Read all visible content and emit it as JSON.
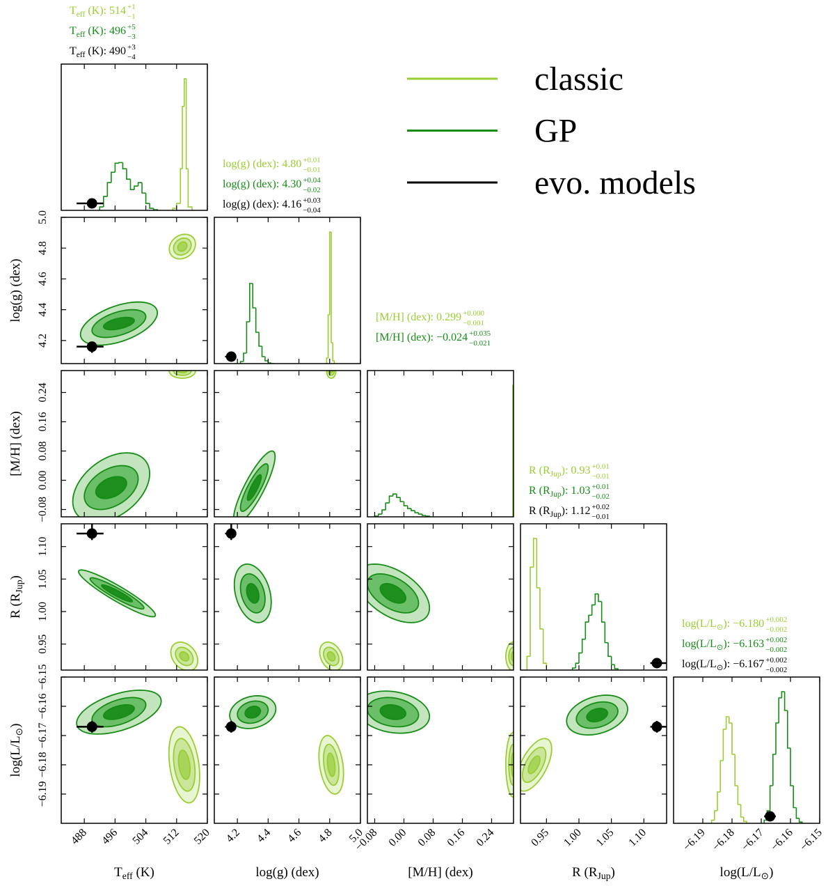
{
  "chart_data": {
    "type": "corner",
    "separator": ": ",
    "models": [
      {
        "name": "classic",
        "color": "#9acd32",
        "fills": [
          "#a6d55a",
          "#c9e69a",
          "#e8f5d3"
        ]
      },
      {
        "name": "GP",
        "color": "#168c16",
        "fills": [
          "#1c8f1c",
          "#6cbf69",
          "#c3e5bd"
        ]
      },
      {
        "name": "evo. models",
        "color": "#000000"
      }
    ],
    "params": [
      {
        "label": [
          "T",
          "eff",
          " (K)"
        ],
        "lim": [
          482,
          520
        ],
        "ticks": [
          488,
          496,
          504,
          512,
          520
        ],
        "estimates": [
          {
            "model": 0,
            "value": 514,
            "plus": 1,
            "minus": -1,
            "value_labels": [
              "514",
              "+1",
              "−1"
            ]
          },
          {
            "model": 1,
            "value": 496,
            "plus": 5,
            "minus": -3,
            "value_labels": [
              "496",
              "+5",
              "−3"
            ]
          },
          {
            "model": 2,
            "value": 490,
            "plus": 3,
            "minus": -4,
            "value_labels": [
              "490",
              "+3",
              "−4"
            ]
          }
        ],
        "hist": [
          {
            "model": 0,
            "bins": [
              511,
              512,
              513,
              513.5,
              514,
              514.5,
              515,
              516
            ],
            "counts": [
              3,
              10,
              60,
              150,
              190,
              60,
              5
            ]
          },
          {
            "model": 1,
            "bins": [
              492,
              493,
              494,
              495,
              496,
              497,
              498,
              499,
              500,
              501,
              502,
              503,
              504,
              505,
              506,
              507
            ],
            "counts": [
              5,
              20,
              40,
              55,
              68,
              69,
              60,
              45,
              30,
              35,
              40,
              25,
              10,
              3,
              1
            ]
          }
        ]
      },
      {
        "label": [
          "log(g) (dex)"
        ],
        "lim": [
          4.05,
          5.0
        ],
        "ticks": [
          4.2,
          4.4,
          4.6,
          4.8,
          {
            "value": 5,
            "label": "5.0"
          }
        ],
        "estimates": [
          {
            "model": 0,
            "value": 4.8,
            "plus": 0.01,
            "minus": -0.01,
            "value_labels": [
              "4.80",
              "+0.01",
              "−0.01"
            ]
          },
          {
            "model": 1,
            "value": 4.3,
            "plus": 0.04,
            "minus": -0.02,
            "value_labels": [
              "4.30",
              "+0.04",
              "−0.02"
            ]
          },
          {
            "model": 2,
            "value": 4.16,
            "plus": 0.03,
            "minus": -0.04,
            "value_labels": [
              "4.16",
              "+0.03",
              "−0.04"
            ]
          }
        ],
        "hist": [
          {
            "model": 0,
            "bins": [
              4.78,
              4.79,
              4.8,
              4.81,
              4.82,
              4.83
            ],
            "counts": [
              8,
              70,
              189,
              30,
              4
            ]
          },
          {
            "model": 1,
            "bins": [
              4.22,
              4.24,
              4.26,
              4.28,
              4.3,
              4.32,
              4.34,
              4.36,
              4.38,
              4.4,
              4.42,
              4.44
            ],
            "counts": [
              3,
              15,
              60,
              115,
              80,
              45,
              25,
              10,
              4,
              1,
              0
            ]
          }
        ]
      },
      {
        "label": [
          "[M/H] (dex)"
        ],
        "lim": [
          -0.1,
          0.3
        ],
        "ticks": [
          {
            "value": -0.08,
            "label": "−0.08"
          },
          {
            "value": 0,
            "label": "0.00"
          },
          0.08,
          0.16,
          0.24
        ],
        "estimates": [
          {
            "model": 0,
            "value": 0.299,
            "plus": 0,
            "minus": -0.001,
            "value_labels": [
              "0.299",
              "+0.000",
              "−0.001"
            ]
          },
          {
            "model": 1,
            "value": -0.024,
            "plus": 0.035,
            "minus": -0.021,
            "value_labels": [
              "−0.024",
              "+0.035",
              "−0.021"
            ]
          }
        ],
        "hist": [
          {
            "model": 0,
            "bins": [
              0.298,
              0.3
            ],
            "counts": [
              190
            ]
          },
          {
            "model": 1,
            "bins": [
              -0.08,
              -0.07,
              -0.06,
              -0.05,
              -0.04,
              -0.03,
              -0.02,
              -0.01,
              0,
              0.01,
              0.02,
              0.03,
              0.04,
              0.05,
              0.06,
              0.07
            ],
            "counts": [
              1,
              4,
              10,
              20,
              30,
              33,
              28,
              22,
              16,
              12,
              9,
              6,
              4,
              2,
              1
            ]
          }
        ]
      },
      {
        "label": [
          "R (R",
          "Jup",
          ")"
        ],
        "lim": [
          0.91,
          1.135
        ],
        "ticks": [
          0.95,
          {
            "value": 1,
            "label": "1.00"
          },
          1.05,
          {
            "value": 1.1,
            "label": "1.10"
          }
        ],
        "estimates": [
          {
            "model": 0,
            "value": 0.93,
            "plus": 0.01,
            "minus": -0.01,
            "value_labels": [
              "0.93",
              "+0.01",
              "−0.01"
            ]
          },
          {
            "model": 1,
            "value": 1.03,
            "plus": 0.01,
            "minus": -0.02,
            "value_labels": [
              "1.03",
              "+0.01",
              "−0.02"
            ]
          },
          {
            "model": 2,
            "value": 1.12,
            "plus": 0.02,
            "minus": -0.01,
            "value_labels": [
              "1.12",
              "+0.02",
              "−0.01"
            ]
          }
        ],
        "hist": [
          {
            "model": 0,
            "bins": [
              0.92,
              0.925,
              0.93,
              0.935,
              0.94,
              0.945,
              0.95
            ],
            "counts": [
              20,
              150,
              192,
              120,
              60,
              10
            ]
          },
          {
            "model": 1,
            "bins": [
              0.99,
              0.995,
              1.0,
              1.005,
              1.01,
              1.015,
              1.02,
              1.025,
              1.03,
              1.035,
              1.04,
              1.045,
              1.05,
              1.055,
              1.06
            ],
            "counts": [
              3,
              10,
              25,
              45,
              70,
              80,
              95,
              111,
              100,
              70,
              40,
              20,
              8,
              2
            ]
          }
        ]
      },
      {
        "label": [
          "log(L/L",
          "⊙",
          ")"
        ],
        "lim": [
          -6.2,
          -6.15
        ],
        "ticks": [
          {
            "value": -6.19,
            "label": "−6.19"
          },
          {
            "value": -6.18,
            "label": "−6.18"
          },
          {
            "value": -6.17,
            "label": "−6.17"
          },
          {
            "value": -6.16,
            "label": "−6.16"
          },
          {
            "value": -6.15,
            "label": "−6.15"
          }
        ],
        "estimates": [
          {
            "model": 0,
            "value": -6.18,
            "plus": 0.002,
            "minus": -0.002,
            "value_labels": [
              "−6.180",
              "+0.002",
              "−0.002"
            ]
          },
          {
            "model": 1,
            "value": -6.163,
            "plus": 0.002,
            "minus": -0.002,
            "value_labels": [
              "−6.163",
              "+0.002",
              "−0.002"
            ]
          },
          {
            "model": 2,
            "value": -6.167,
            "plus": 0.002,
            "minus": -0.002,
            "value_labels": [
              "−6.167",
              "+0.002",
              "−0.002"
            ]
          }
        ],
        "hist": [
          {
            "model": 0,
            "bins": [
              -6.187,
              -6.186,
              -6.185,
              -6.184,
              -6.183,
              -6.182,
              -6.181,
              -6.18,
              -6.179,
              -6.178,
              -6.177,
              -6.176,
              -6.175
            ],
            "counts": [
              5,
              20,
              50,
              100,
              150,
              170,
              160,
              110,
              60,
              30,
              10,
              3
            ]
          },
          {
            "model": 1,
            "bins": [
              -6.169,
              -6.168,
              -6.167,
              -6.166,
              -6.165,
              -6.164,
              -6.163,
              -6.162,
              -6.161,
              -6.16,
              -6.159,
              -6.158,
              -6.157,
              -6.156
            ],
            "counts": [
              5,
              20,
              60,
              110,
              160,
              200,
              210,
              180,
              120,
              60,
              25,
              8,
              2
            ]
          }
        ]
      }
    ],
    "contours": [
      {
        "x": 0,
        "y": 1,
        "model": 0,
        "center": [
          513.5,
          4.81
        ],
        "rho": 0.2,
        "extents": [
          [
            1.2,
            0.03
          ],
          [
            2.3,
            0.055
          ],
          [
            3.4,
            0.08
          ]
        ]
      },
      {
        "x": 0,
        "y": 1,
        "model": 1,
        "center": [
          497,
          4.31
        ],
        "rho": 0.5,
        "extents": [
          [
            4,
            0.04
          ],
          [
            7,
            0.09
          ],
          [
            10,
            0.14
          ]
        ]
      },
      {
        "x": 0,
        "y": 2,
        "model": 0,
        "center": [
          513.5,
          0.299
        ],
        "rho": 0,
        "extents": [
          [
            1.2,
            0.005
          ],
          [
            2.3,
            0.012
          ],
          [
            3.4,
            0.02
          ]
        ]
      },
      {
        "x": 0,
        "y": 2,
        "model": 1,
        "center": [
          495,
          -0.02
        ],
        "rho": 0.4,
        "extents": [
          [
            4,
            0.03
          ],
          [
            7,
            0.06
          ],
          [
            10,
            0.095
          ]
        ]
      },
      {
        "x": 0,
        "y": 3,
        "model": 0,
        "center": [
          514,
          0.931
        ],
        "rho": -0.3,
        "extents": [
          [
            1.2,
            0.007
          ],
          [
            2.3,
            0.014
          ],
          [
            3.5,
            0.022
          ]
        ]
      },
      {
        "x": 0,
        "y": 3,
        "model": 1,
        "center": [
          496.5,
          1.028
        ],
        "rho": -0.93,
        "extents": [
          [
            4,
            0.013
          ],
          [
            7,
            0.024
          ],
          [
            10,
            0.036
          ]
        ]
      },
      {
        "x": 0,
        "y": 4,
        "model": 0,
        "center": [
          514,
          -6.18
        ],
        "rho": -0.3,
        "extents": [
          [
            1.5,
            0.005
          ],
          [
            2.8,
            0.009
          ],
          [
            4,
            0.013
          ]
        ]
      },
      {
        "x": 0,
        "y": 4,
        "model": 1,
        "center": [
          497,
          -6.162
        ],
        "rho": 0.5,
        "extents": [
          [
            4,
            0.0025
          ],
          [
            7,
            0.005
          ],
          [
            11,
            0.0075
          ]
        ]
      },
      {
        "x": 1,
        "y": 2,
        "model": 0,
        "center": [
          4.81,
          0.299
        ],
        "rho": 0,
        "extents": [
          [
            0.01,
            0.005
          ],
          [
            0.02,
            0.012
          ],
          [
            0.03,
            0.02
          ]
        ]
      },
      {
        "x": 1,
        "y": 2,
        "model": 1,
        "center": [
          4.31,
          -0.02
        ],
        "rho": 0.85,
        "extents": [
          [
            0.045,
            0.035
          ],
          [
            0.09,
            0.065
          ],
          [
            0.135,
            0.1
          ]
        ]
      },
      {
        "x": 1,
        "y": 3,
        "model": 0,
        "center": [
          4.81,
          0.931
        ],
        "rho": -0.3,
        "extents": [
          [
            0.025,
            0.007
          ],
          [
            0.05,
            0.014
          ],
          [
            0.075,
            0.022
          ]
        ]
      },
      {
        "x": 1,
        "y": 3,
        "model": 1,
        "center": [
          4.3,
          1.028
        ],
        "rho": -0.3,
        "extents": [
          [
            0.04,
            0.015
          ],
          [
            0.08,
            0.03
          ],
          [
            0.12,
            0.045
          ]
        ]
      },
      {
        "x": 1,
        "y": 4,
        "model": 0,
        "center": [
          4.81,
          -6.18
        ],
        "rho": -0.3,
        "extents": [
          [
            0.025,
            0.004
          ],
          [
            0.05,
            0.007
          ],
          [
            0.08,
            0.01
          ]
        ]
      },
      {
        "x": 1,
        "y": 4,
        "model": 1,
        "center": [
          4.3,
          -6.162
        ],
        "rho": 0.2,
        "extents": [
          [
            0.05,
            0.002
          ],
          [
            0.1,
            0.0038
          ],
          [
            0.15,
            0.0056
          ]
        ]
      },
      {
        "x": 2,
        "y": 3,
        "model": 0,
        "center": [
          0.299,
          0.931
        ],
        "rho": 0,
        "extents": [
          [
            0.005,
            0.007
          ],
          [
            0.012,
            0.014
          ],
          [
            0.02,
            0.022
          ]
        ]
      },
      {
        "x": 2,
        "y": 3,
        "model": 1,
        "center": [
          -0.03,
          1.028
        ],
        "rho": -0.5,
        "extents": [
          [
            0.035,
            0.015
          ],
          [
            0.07,
            0.03
          ],
          [
            0.1,
            0.045
          ]
        ]
      },
      {
        "x": 2,
        "y": 4,
        "model": 0,
        "center": [
          0.299,
          -6.18
        ],
        "rho": 0,
        "extents": [
          [
            0.005,
            0.004
          ],
          [
            0.012,
            0.007
          ],
          [
            0.02,
            0.011
          ]
        ]
      },
      {
        "x": 2,
        "y": 4,
        "model": 1,
        "center": [
          -0.03,
          -6.162
        ],
        "rho": -0.2,
        "extents": [
          [
            0.035,
            0.0025
          ],
          [
            0.07,
            0.005
          ],
          [
            0.1,
            0.0072
          ]
        ]
      },
      {
        "x": 3,
        "y": 4,
        "model": 0,
        "center": [
          0.931,
          -6.18
        ],
        "rho": 0.6,
        "extents": [
          [
            0.009,
            0.003
          ],
          [
            0.018,
            0.006
          ],
          [
            0.027,
            0.009
          ]
        ]
      },
      {
        "x": 3,
        "y": 4,
        "model": 1,
        "center": [
          1.028,
          -6.163
        ],
        "rho": 0.3,
        "extents": [
          [
            0.016,
            0.0023
          ],
          [
            0.032,
            0.0045
          ],
          [
            0.047,
            0.0068
          ]
        ]
      }
    ]
  }
}
